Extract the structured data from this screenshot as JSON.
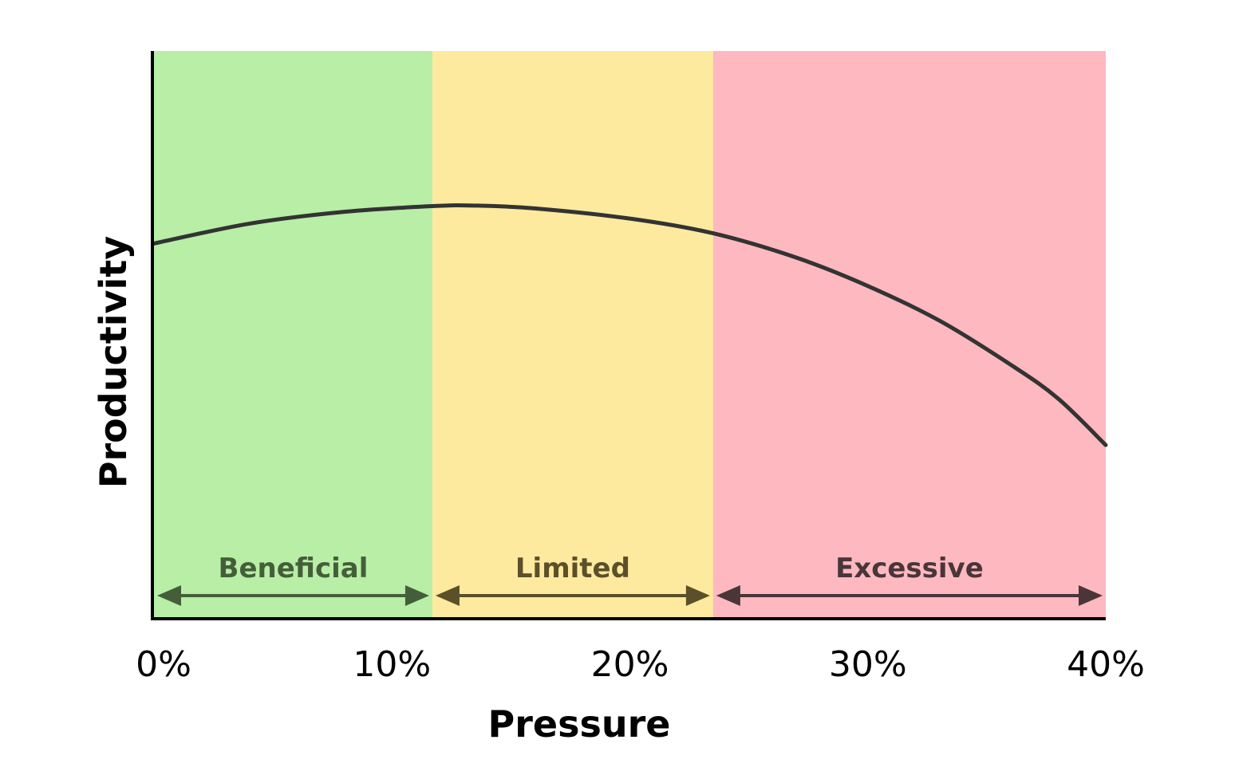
{
  "chart_data": {
    "type": "line",
    "title": "",
    "xlabel": "Pressure",
    "ylabel": "Productivity",
    "xlim": [
      0,
      40
    ],
    "ylim": [
      0,
      100
    ],
    "x_ticks": [
      "0%",
      "10%",
      "20%",
      "30%",
      "40%"
    ],
    "x_tick_values": [
      0,
      10,
      20,
      30,
      40
    ],
    "grid": false,
    "legend": "none",
    "series": [
      {
        "x": [
          0,
          4,
          8,
          11.7,
          13.5,
          16,
          20,
          23.5,
          27,
          30,
          33,
          36,
          38,
          40
        ],
        "y": [
          66,
          69.5,
          71.6,
          72.6,
          72.7,
          72.2,
          70.4,
          67.8,
          63.5,
          58.5,
          52.4,
          44.6,
          38.6,
          30.4
        ],
        "color": "#333333"
      }
    ],
    "zones": [
      {
        "label": "Beneficial",
        "from": 0,
        "to": 11.7,
        "fill": "#b8eea6",
        "text_color": "#445e3a"
      },
      {
        "label": "Limited",
        "from": 11.7,
        "to": 23.5,
        "fill": "#fdea9e",
        "text_color": "#5b5029"
      },
      {
        "label": "Excessive",
        "from": 23.5,
        "to": 40,
        "fill": "#fdb8c0",
        "text_color": "#4a3539"
      }
    ]
  }
}
